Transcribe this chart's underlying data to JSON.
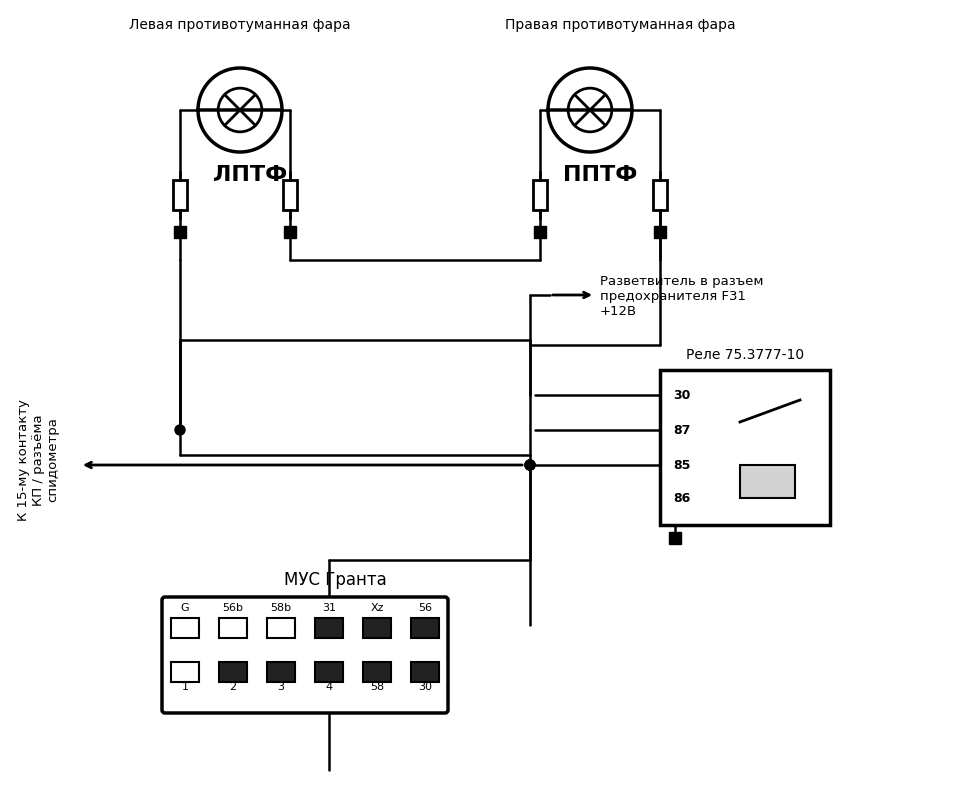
{
  "bg_color": "#ffffff",
  "line_color": "#000000",
  "fig_width": 9.6,
  "fig_height": 7.87,
  "left_fog_label": "Левая противотуманная фара",
  "right_fog_label": "Правая противотуманная фара",
  "left_abbr": "ЛПТФ",
  "right_abbr": "ППТФ",
  "relay_label": "Реле 75.3777-10",
  "relay_pins": [
    "30",
    "87",
    "85",
    "86"
  ],
  "splitter_label": "Разветвитель в разъем\nпредохранителя F31\n+12В",
  "left_text": "К 15-му контакту\nКП / разъёма\nспидометра",
  "mus_label": "МУС Гранта",
  "connector_top_labels": [
    "G",
    "56b",
    "58b",
    "31",
    "Xz",
    "56"
  ],
  "connector_bot_labels": [
    "1",
    "2",
    "3",
    "4",
    "58",
    "30"
  ]
}
